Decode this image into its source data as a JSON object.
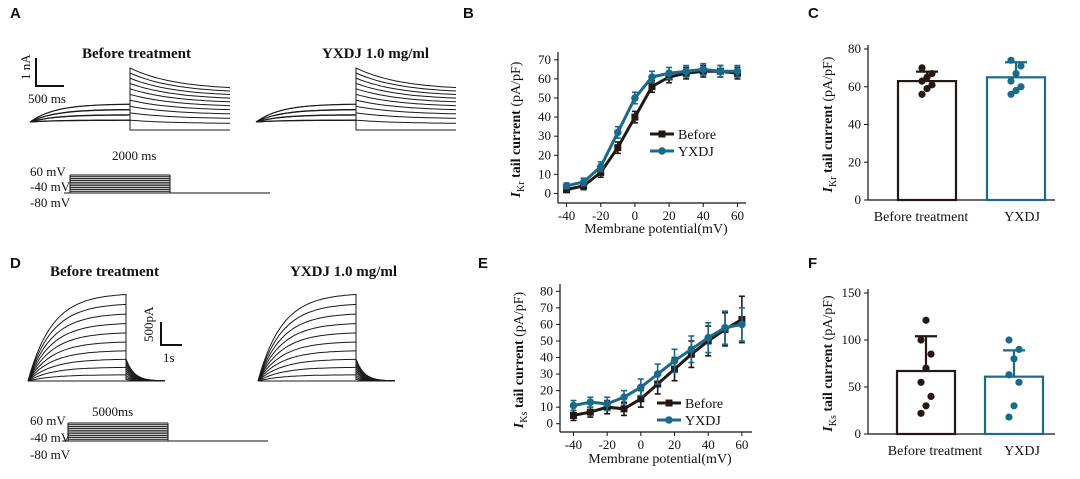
{
  "panels": {
    "A": {
      "label": "A",
      "title_before": "Before treatment",
      "title_yxdj": "YXDJ  1.0 mg/ml",
      "scale_y": "1 nA",
      "scale_x": "500 ms",
      "time_label": "2000 ms",
      "protocol": [
        "60 mV",
        "-40 mV",
        "-80 mV"
      ]
    },
    "D": {
      "label": "D",
      "title_before": "Before treatment",
      "title_yxdj": "YXDJ  1.0 mg/ml",
      "scale_y": "500pA",
      "scale_x": "1s",
      "time_label": "5000ms",
      "protocol": [
        "60 mV",
        "-40 mV",
        "-80 mV"
      ]
    },
    "B": {
      "label": "B"
    },
    "C": {
      "label": "C"
    },
    "E": {
      "label": "E"
    },
    "F": {
      "label": "F"
    }
  },
  "colors": {
    "before": "#231815",
    "yxdj": "#1a6a8a",
    "axis": "#111111"
  },
  "chart_data": [
    {
      "id": "B",
      "type": "line",
      "ylabel_main": "I",
      "ylabel_sub": "Kr",
      "ylabel_rest": " tail current (pA/pF)",
      "xlabel": "Membrane potential(mV)",
      "x": [
        -40,
        -30,
        -20,
        -10,
        0,
        10,
        20,
        30,
        40,
        50,
        60
      ],
      "xticks": [
        -40,
        -20,
        0,
        20,
        40,
        60
      ],
      "yticks": [
        0,
        10,
        20,
        30,
        40,
        50,
        60,
        70
      ],
      "xlim": [
        -45,
        65
      ],
      "ylim": [
        -5,
        72
      ],
      "legend": "center-right",
      "series": [
        {
          "name": "Before",
          "values": [
            2,
            4,
            11,
            24,
            40,
            56,
            61,
            63,
            64,
            64,
            63
          ],
          "err": [
            1.5,
            2,
            2.5,
            3,
            3,
            3,
            3,
            3,
            3,
            3,
            3
          ]
        },
        {
          "name": "YXDJ",
          "values": [
            4,
            6,
            14,
            32,
            50,
            61,
            63,
            64,
            65,
            64,
            64
          ],
          "err": [
            1.5,
            2,
            2.5,
            3,
            3,
            3,
            3,
            3,
            3,
            3,
            3
          ]
        }
      ]
    },
    {
      "id": "C",
      "type": "bar",
      "ylabel_main": "I",
      "ylabel_sub": "Kr",
      "ylabel_rest": " tail current (pA/pF)",
      "categories": [
        "Before treatment",
        "YXDJ"
      ],
      "values": [
        63,
        65
      ],
      "err": [
        5,
        8
      ],
      "points": [
        [
          56,
          59,
          61,
          63,
          65,
          67,
          70
        ],
        [
          56,
          58,
          60,
          63,
          67,
          71,
          74
        ]
      ],
      "yticks": [
        0,
        20,
        40,
        60,
        80
      ],
      "ylim": [
        0,
        80
      ]
    },
    {
      "id": "E",
      "type": "line",
      "ylabel_main": "I",
      "ylabel_sub": "Ks",
      "ylabel_rest": " tail current (pA/pF)",
      "xlabel": "Membrane potential(mV)",
      "x": [
        -40,
        -30,
        -20,
        -10,
        0,
        10,
        20,
        30,
        40,
        50,
        60
      ],
      "xticks": [
        -40,
        -20,
        0,
        20,
        40,
        60
      ],
      "yticks": [
        0,
        10,
        20,
        30,
        40,
        50,
        60,
        70,
        80
      ],
      "xlim": [
        -48,
        66
      ],
      "ylim": [
        -5,
        82
      ],
      "legend": "bottom-right",
      "series": [
        {
          "name": "Before",
          "values": [
            5,
            7,
            10,
            9,
            15,
            24,
            33,
            42,
            50,
            57,
            63
          ],
          "err": [
            3,
            3,
            4,
            4,
            5,
            6,
            7,
            8,
            9,
            10,
            14
          ]
        },
        {
          "name": "YXDJ",
          "values": [
            11,
            13,
            12,
            16,
            22,
            30,
            38,
            45,
            52,
            58,
            60
          ],
          "err": [
            3,
            3,
            4,
            4,
            5,
            6,
            7,
            8,
            9,
            10,
            10
          ]
        }
      ]
    },
    {
      "id": "F",
      "type": "bar",
      "ylabel_main": "I",
      "ylabel_sub": "Ks",
      "ylabel_rest": " tail current (pA/pF)",
      "categories": [
        "Before treatment",
        "YXDJ"
      ],
      "values": [
        67,
        61
      ],
      "err": [
        37,
        28
      ],
      "points": [
        [
          22,
          30,
          40,
          55,
          70,
          85,
          100,
          121
        ],
        [
          18,
          30,
          55,
          63,
          80,
          90,
          100
        ]
      ],
      "yticks": [
        0,
        50,
        100,
        150
      ],
      "ylim": [
        0,
        150
      ]
    }
  ]
}
